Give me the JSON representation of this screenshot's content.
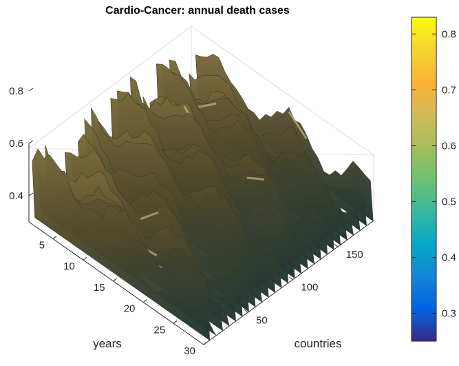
{
  "chart_data": {
    "type": "surface",
    "title": "Cardio-Cancer: annual death cases",
    "xlabel": "countries",
    "ylabel": "years",
    "zlabel": "",
    "x_ticks": [
      50,
      100,
      150
    ],
    "y_ticks": [
      5,
      10,
      15,
      20,
      25,
      30
    ],
    "z_ticks": [
      0.4,
      0.6,
      0.8
    ],
    "xlim": [
      1,
      190
    ],
    "ylim": [
      1,
      30
    ],
    "zlim": [
      0.25,
      0.85
    ],
    "colorbar": {
      "colormap": "parula",
      "ticks": [
        0.3,
        0.4,
        0.5,
        0.6,
        0.7,
        0.8
      ],
      "limits": [
        0.25,
        0.83
      ]
    },
    "grid": true,
    "view": "3d-oblique"
  }
}
